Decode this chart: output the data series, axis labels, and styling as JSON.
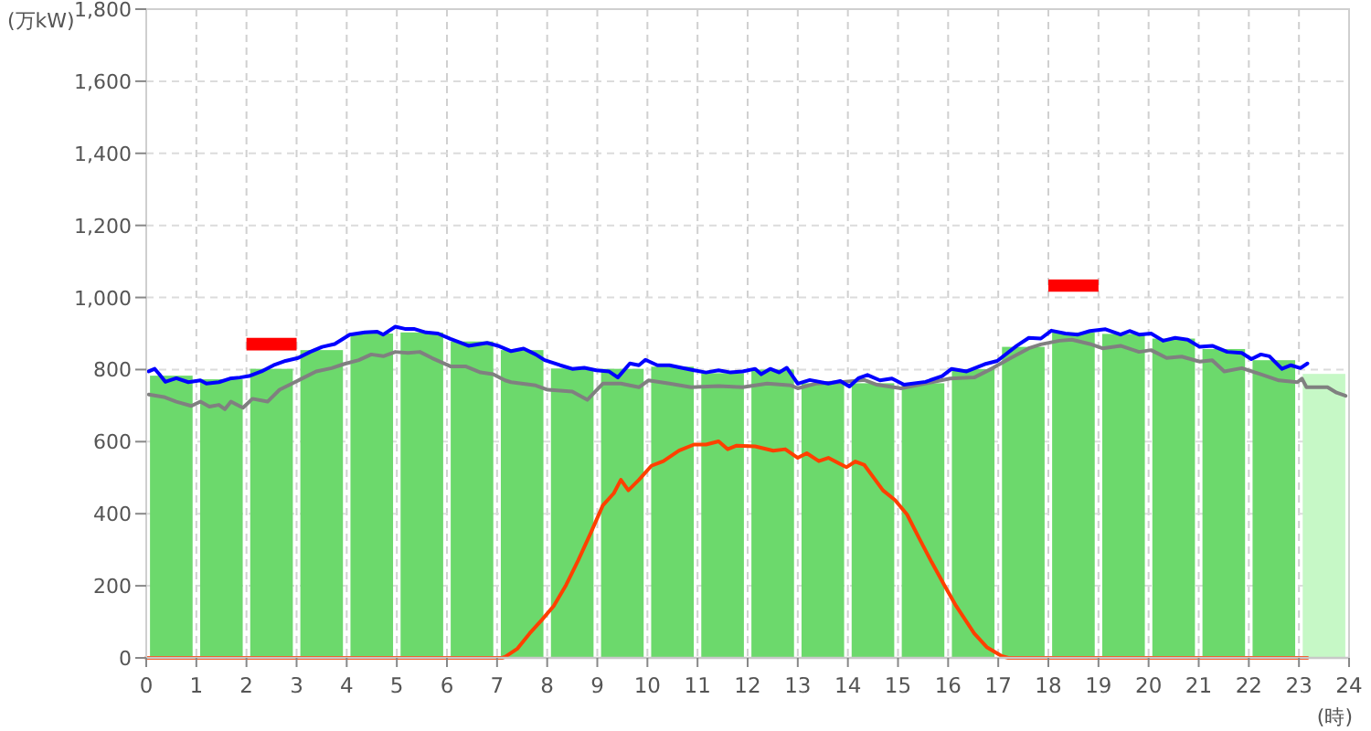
{
  "chart_data": {
    "type": "bar",
    "ylabel": "(万kW)",
    "xlabel": "(時)",
    "xlim": [
      0,
      24
    ],
    "xticks": [
      0,
      1,
      2,
      3,
      4,
      5,
      6,
      7,
      8,
      9,
      10,
      11,
      12,
      13,
      14,
      15,
      16,
      17,
      18,
      19,
      20,
      21,
      22,
      23,
      24
    ],
    "ylim": [
      0,
      1800
    ],
    "yticks": [
      0,
      200,
      400,
      600,
      800,
      {
        "value": 1000,
        "label": "1,000"
      },
      {
        "value": 1200,
        "label": "1,200"
      },
      {
        "value": 1400,
        "label": "1,400"
      },
      {
        "value": 1600,
        "label": "1,600"
      },
      {
        "value": 1800,
        "label": "1,800"
      }
    ],
    "grid": true,
    "series": [
      {
        "x": [
          0.5,
          1.5,
          2.5,
          3.5,
          4.5,
          5.5,
          6.5,
          7.5,
          8.5,
          9.5,
          10.5,
          11.5,
          12.5,
          13.5,
          14.5,
          15.5,
          16.5,
          17.5,
          18.5,
          19.5,
          20.5,
          21.5,
          22.5,
          23.5
        ],
        "values": [
          783,
          773,
          802,
          854,
          900,
          903,
          878,
          854,
          803,
          802,
          808,
          790,
          800,
          762,
          762,
          762,
          801,
          863,
          903,
          899,
          886,
          857,
          826,
          788
        ],
        "colors": [
          "#6cd96c",
          "#6cd96c",
          "#6cd96c",
          "#6cd96c",
          "#6cd96c",
          "#6cd96c",
          "#6cd96c",
          "#6cd96c",
          "#6cd96c",
          "#6cd96c",
          "#6cd96c",
          "#6cd96c",
          "#6cd96c",
          "#6cd96c",
          "#6cd96c",
          "#6cd96c",
          "#6cd96c",
          "#6cd96c",
          "#6cd96c",
          "#6cd96c",
          "#6cd96c",
          "#6cd96c",
          "#6cd96c",
          "#c6f8c6"
        ]
      },
      {
        "type": "line",
        "color": "#808080",
        "x": [
          0.05,
          0.35,
          0.6,
          0.9,
          1.08,
          1.26,
          1.45,
          1.57,
          1.69,
          1.93,
          2.12,
          2.42,
          2.66,
          2.91,
          3.15,
          3.39,
          3.7,
          3.94,
          4.24,
          4.49,
          4.73,
          4.97,
          5.22,
          5.46,
          5.7,
          6.07,
          6.37,
          6.67,
          6.92,
          7.16,
          7.28,
          7.77,
          8.01,
          8.5,
          8.8,
          9.11,
          9.47,
          9.83,
          10.02,
          10.44,
          10.87,
          11.42,
          11.9,
          12.39,
          12.87,
          13.0,
          13.36,
          13.85,
          14.33,
          14.58,
          15.06,
          15.6,
          16.04,
          16.52,
          16.89,
          17.25,
          17.61,
          17.85,
          18.22,
          18.47,
          18.83,
          19.08,
          19.44,
          19.81,
          20.05,
          20.36,
          20.66,
          21.02,
          21.27,
          21.51,
          21.86,
          22.24,
          22.6,
          22.97,
          23.06,
          23.15,
          23.57,
          23.75,
          23.93
        ],
        "values": [
          731,
          724,
          711,
          699,
          711,
          697,
          702,
          690,
          711,
          694,
          719,
          711,
          744,
          761,
          778,
          795,
          804,
          815,
          826,
          842,
          837,
          849,
          846,
          849,
          832,
          809,
          809,
          792,
          787,
          770,
          765,
          756,
          744,
          739,
          716,
          761,
          761,
          751,
          770,
          761,
          751,
          754,
          751,
          761,
          756,
          748,
          761,
          765,
          771,
          758,
          748,
          763,
          775,
          778,
          804,
          832,
          859,
          870,
          880,
          883,
          871,
          859,
          866,
          849,
          854,
          832,
          836,
          822,
          826,
          795,
          804,
          787,
          770,
          765,
          775,
          751,
          751,
          736,
          727
        ]
      },
      {
        "type": "line",
        "color": "#ff4000",
        "x": [
          0,
          7.1,
          7.16,
          7.4,
          7.65,
          7.89,
          8.13,
          8.38,
          8.62,
          8.87,
          9.11,
          9.33,
          9.47,
          9.62,
          9.83,
          10.08,
          10.32,
          10.63,
          10.93,
          11.17,
          11.42,
          11.6,
          11.78,
          12.15,
          12.51,
          12.75,
          13.0,
          13.18,
          13.42,
          13.61,
          13.97,
          14.15,
          14.33,
          14.7,
          14.94,
          15.18,
          15.43,
          15.67,
          15.92,
          16.16,
          16.52,
          16.77,
          17.07,
          17.2,
          23.17
        ],
        "values": [
          0,
          0,
          3,
          25,
          68,
          105,
          144,
          203,
          271,
          347,
          423,
          457,
          494,
          465,
          494,
          533,
          546,
          575,
          592,
          592,
          601,
          579,
          589,
          587,
          575,
          579,
          555,
          568,
          546,
          555,
          529,
          545,
          535,
          465,
          438,
          398,
          330,
          266,
          203,
          144,
          68,
          30,
          5,
          0,
          0
        ]
      },
      {
        "type": "line",
        "color": "#0000ff",
        "x": [
          0.05,
          0.17,
          0.26,
          0.38,
          0.6,
          0.84,
          1.08,
          1.2,
          1.45,
          1.67,
          1.87,
          2.05,
          2.3,
          2.54,
          2.78,
          3.03,
          3.27,
          3.51,
          3.76,
          4.06,
          4.36,
          4.61,
          4.73,
          4.97,
          5.16,
          5.34,
          5.58,
          5.82,
          6.07,
          6.43,
          6.8,
          7.04,
          7.28,
          7.53,
          7.77,
          7.95,
          8.26,
          8.5,
          8.74,
          8.98,
          9.23,
          9.41,
          9.65,
          9.83,
          9.96,
          10.2,
          10.44,
          10.68,
          10.93,
          11.17,
          11.42,
          11.66,
          11.9,
          12.15,
          12.27,
          12.45,
          12.63,
          12.78,
          13.0,
          13.24,
          13.61,
          13.85,
          14.03,
          14.21,
          14.39,
          14.64,
          14.88,
          15.12,
          15.55,
          15.88,
          16.07,
          16.37,
          16.73,
          16.98,
          17.37,
          17.61,
          17.85,
          18.06,
          18.34,
          18.59,
          18.83,
          19.14,
          19.44,
          19.62,
          19.81,
          20.05,
          20.29,
          20.53,
          20.78,
          21.02,
          21.27,
          21.57,
          21.86,
          22.05,
          22.24,
          22.41,
          22.66,
          22.84,
          23.03,
          23.17
        ],
        "values": [
          795,
          802,
          787,
          766,
          776,
          765,
          770,
          761,
          765,
          775,
          778,
          782,
          795,
          812,
          824,
          832,
          849,
          863,
          871,
          897,
          903,
          905,
          897,
          919,
          913,
          913,
          903,
          900,
          885,
          866,
          874,
          865,
          851,
          858,
          842,
          826,
          812,
          802,
          805,
          798,
          795,
          778,
          817,
          812,
          827,
          812,
          812,
          805,
          798,
          792,
          798,
          792,
          795,
          802,
          787,
          802,
          792,
          805,
          761,
          771,
          761,
          768,
          753,
          776,
          785,
          770,
          775,
          758,
          766,
          782,
          802,
          795,
          815,
          824,
          866,
          888,
          886,
          908,
          900,
          897,
          907,
          912,
          897,
          907,
          897,
          900,
          880,
          888,
          883,
          863,
          866,
          849,
          846,
          829,
          842,
          837,
          802,
          812,
          804,
          817
        ]
      },
      {
        "x": [
          2.5,
          18.5
        ],
        "base": [
          853,
          1016
        ],
        "values": [
          35,
          34
        ],
        "color": "#ff0000"
      }
    ]
  }
}
